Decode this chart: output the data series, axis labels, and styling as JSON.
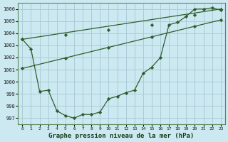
{
  "title": "Graphe pression niveau de la mer (hPa)",
  "bg_color": "#cce8f0",
  "grid_color": "#aaccd8",
  "line_color": "#2d5e2d",
  "marker_color": "#2d5e2d",
  "xlim": [
    -0.5,
    23.5
  ],
  "ylim": [
    996.5,
    1006.5
  ],
  "yticks": [
    997,
    998,
    999,
    1000,
    1001,
    1002,
    1003,
    1004,
    1005,
    1006
  ],
  "xticks": [
    0,
    1,
    2,
    3,
    4,
    5,
    6,
    7,
    8,
    9,
    10,
    11,
    12,
    13,
    14,
    15,
    16,
    17,
    18,
    19,
    20,
    21,
    22,
    23
  ],
  "line1_x": [
    0,
    1,
    2,
    3,
    4,
    5,
    6,
    7,
    8,
    9,
    10,
    11,
    12,
    13,
    14,
    15,
    16,
    17,
    18,
    19,
    20,
    21,
    22,
    23
  ],
  "line1_y": [
    1003.5,
    1002.7,
    999.2,
    999.3,
    997.6,
    997.2,
    997.0,
    997.3,
    997.3,
    997.5,
    998.6,
    998.8,
    999.1,
    999.3,
    1000.7,
    1001.2,
    1002.0,
    1004.7,
    1004.9,
    1005.4,
    1006.0,
    1006.0,
    1006.1,
    1005.9
  ],
  "line2_x": [
    0,
    23
  ],
  "line2_y": [
    1001.1,
    1005.1
  ],
  "line3_x": [
    0,
    23
  ],
  "line3_y": [
    1003.5,
    1006.0
  ],
  "line2_markers_x": [
    0,
    5,
    10,
    15,
    20,
    23
  ],
  "line2_markers_y": [
    1001.1,
    1001.97,
    1002.84,
    1003.71,
    1004.58,
    1005.1
  ],
  "line3_markers_x": [
    0,
    5,
    10,
    15,
    20,
    23
  ],
  "line3_markers_y": [
    1003.5,
    1003.9,
    1004.3,
    1004.7,
    1005.5,
    1006.0
  ]
}
